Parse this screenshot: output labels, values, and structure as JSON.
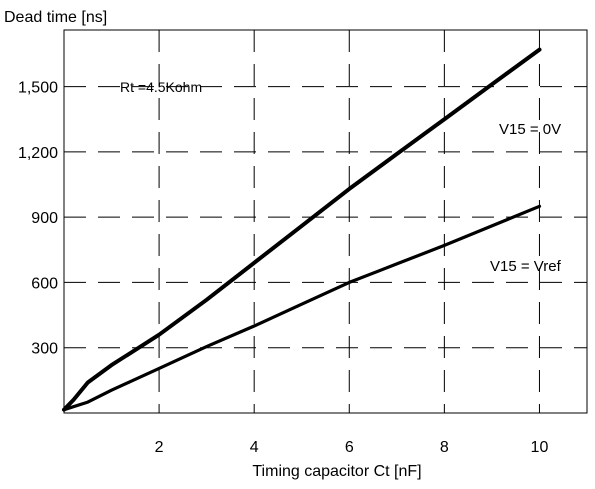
{
  "chart_data": {
    "type": "line",
    "title": "",
    "xlabel": "Timing capacitor Ct [nF]",
    "ylabel": "Dead time [ns]",
    "xlim": [
      0,
      11
    ],
    "ylim": [
      0,
      1760
    ],
    "x_ticks": [
      2,
      4,
      6,
      8,
      10
    ],
    "x_tick_labels": [
      "2",
      "4",
      "6",
      "8",
      "10"
    ],
    "y_ticks": [
      300,
      600,
      900,
      1200,
      1500
    ],
    "y_tick_labels": [
      "300",
      "600",
      "900",
      "1,200",
      "1,500"
    ],
    "grid": true,
    "annotations": {
      "rt": "Rt =4.5Kohm",
      "series_1": "V15 = 0V",
      "series_2": "V15 = Vref"
    },
    "series": [
      {
        "name": "V15 = 0V",
        "x": [
          0,
          0.2,
          0.5,
          1,
          2,
          3,
          4,
          5,
          6,
          7,
          8,
          9,
          10
        ],
        "y": [
          15,
          60,
          140,
          220,
          360,
          520,
          690,
          860,
          1030,
          1190,
          1350,
          1510,
          1670
        ]
      },
      {
        "name": "V15 = Vref",
        "x": [
          0,
          0.5,
          1,
          2,
          3,
          4,
          5,
          6,
          7,
          8,
          9,
          10
        ],
        "y": [
          15,
          50,
          105,
          205,
          305,
          400,
          500,
          600,
          685,
          770,
          860,
          950
        ]
      }
    ]
  }
}
